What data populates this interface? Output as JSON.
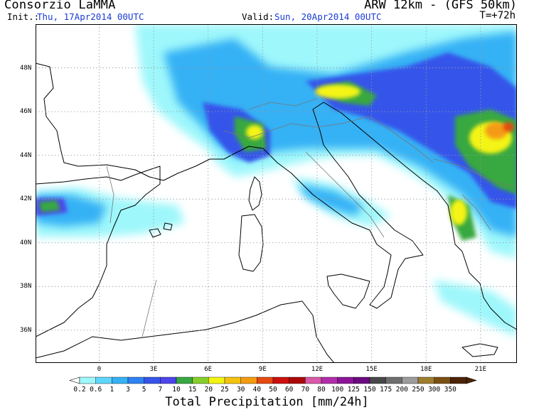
{
  "header": {
    "organization": "Consorzio LaMMA",
    "model": "ARW 12km - (GFS 50km)",
    "init_label": "Init.:",
    "init_value": "Thu, 17Apr2014 00UTC",
    "valid_label": "Valid:",
    "valid_value": "Sun, 20Apr2014 00UTC",
    "forecast_step": "T=+72h"
  },
  "map": {
    "lon_labels": [
      "0",
      "3E",
      "6E",
      "9E",
      "12E",
      "15E",
      "18E",
      "21E"
    ],
    "lat_labels": [
      "48N",
      "46N",
      "44N",
      "42N",
      "40N",
      "38N",
      "36N"
    ],
    "lon_range": [
      -3.5,
      23.0
    ],
    "lat_range": [
      34.5,
      50.0
    ]
  },
  "colorbar": {
    "title": "Total Precipitation [mm/24h]",
    "levels": [
      "0.2",
      "0.6",
      "1",
      "3",
      "5",
      "7",
      "10",
      "15",
      "20",
      "25",
      "30",
      "40",
      "50",
      "60",
      "70",
      "80",
      "100",
      "125",
      "150",
      "175",
      "200",
      "250",
      "300",
      "350"
    ],
    "colors": [
      "#9ef7fb",
      "#5fd6fb",
      "#36b1f5",
      "#2f82f3",
      "#3654ea",
      "#4d44ec",
      "#38a840",
      "#87ce2c",
      "#f4f414",
      "#f4c30f",
      "#f49b12",
      "#e64a11",
      "#cc0f0f",
      "#ac0808",
      "#d85aa8",
      "#b22dab",
      "#8b1499",
      "#6b0a80",
      "#484848",
      "#6e6e6e",
      "#9c9c9c",
      "#9e7e2e",
      "#7a4f14",
      "#4c2405"
    ]
  }
}
